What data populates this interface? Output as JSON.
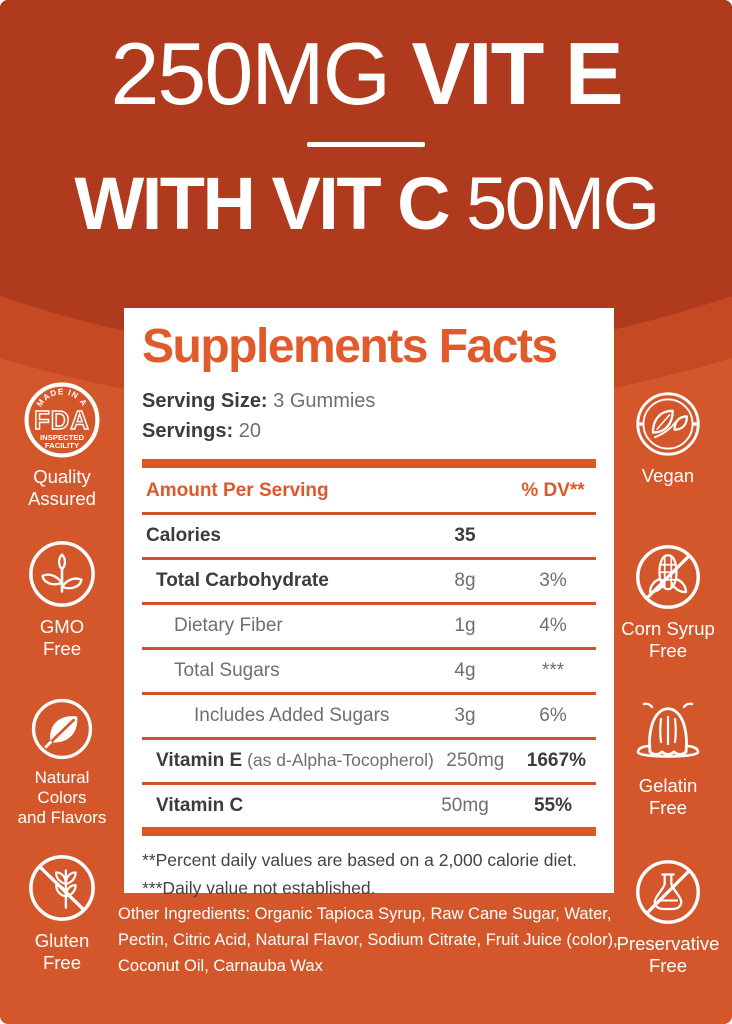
{
  "header": {
    "line1_light": "250MG ",
    "line1_bold": "VIT E",
    "line2_bold": "WITH VIT C ",
    "line2_light": "50MG"
  },
  "panel": {
    "title": "Supplements Facts",
    "serving_size_label": "Serving Size:",
    "serving_size_value": "3 Gummies",
    "servings_label": "Servings:",
    "servings_value": "20",
    "col_header_left": "Amount Per Serving",
    "col_header_right": "% DV**",
    "rows": [
      {
        "name": "Calories",
        "name_suffix": "",
        "amount": "35",
        "dv": "",
        "indent": 0,
        "name_bold": true,
        "amount_bold": true,
        "dv_bold": false
      },
      {
        "name": "Total Carbohydrate",
        "name_suffix": "",
        "amount": "8g",
        "dv": "3%",
        "indent": 1,
        "name_bold": true,
        "amount_bold": false,
        "dv_bold": false
      },
      {
        "name": "Dietary Fiber",
        "name_suffix": "",
        "amount": "1g",
        "dv": "4%",
        "indent": 2,
        "name_bold": false,
        "amount_bold": false,
        "dv_bold": false
      },
      {
        "name": "Total Sugars",
        "name_suffix": "",
        "amount": "4g",
        "dv": "***",
        "indent": 2,
        "name_bold": false,
        "amount_bold": false,
        "dv_bold": false
      },
      {
        "name": "Includes Added Sugars",
        "name_suffix": "",
        "amount": "3g",
        "dv": "6%",
        "indent": 3,
        "name_bold": false,
        "amount_bold": false,
        "dv_bold": false
      },
      {
        "name": "Vitamin E",
        "name_suffix": " (as d-Alpha-Tocopherol)",
        "amount": "250mg",
        "dv": "1667%",
        "indent": 1,
        "name_bold": true,
        "amount_bold": false,
        "dv_bold": true
      },
      {
        "name": "Vitamin C",
        "name_suffix": "",
        "amount": "50mg",
        "dv": "55%",
        "indent": 1,
        "name_bold": true,
        "amount_bold": false,
        "dv_bold": true
      }
    ],
    "footnotes": [
      "**Percent daily values are based on a 2,000 calorie diet.",
      "***Daily value not established."
    ]
  },
  "other_ingredients": "Other Ingredients: Organic Tapioca Syrup, Raw Cane Sugar, Water, Pectin, Citric Acid, Natural Flavor, Sodium Citrate, Fruit Juice (color), Coconut Oil, Carnauba Wax",
  "badges": [
    {
      "label": "Quality\nAssured",
      "icon": "fda-badge",
      "icon_text": [
        "MADE IN A",
        "FDA",
        "INSPECTED",
        "FACILITY"
      ]
    },
    {
      "label": "GMO\nFree",
      "icon": "sprout"
    },
    {
      "label": "Natural\nColors\nand Flavors",
      "icon": "leaf"
    },
    {
      "label": "Gluten\nFree",
      "icon": "wheat-crossed"
    },
    {
      "label": "Vegan",
      "icon": "vegan-leaves"
    },
    {
      "label": "Corn Syrup\nFree",
      "icon": "corn-crossed"
    },
    {
      "label": "Gelatin\nFree",
      "icon": "jelly"
    },
    {
      "label": "Preservative\nFree",
      "icon": "flask-crossed"
    }
  ],
  "colors": {
    "header_dark": "#AF3A1D",
    "curve_band": "#C54A23",
    "body_orange": "#D4572B",
    "accent_orange": "#E05A2B",
    "rule_orange": "#D2512B",
    "text_dark": "#3C3C3C",
    "text_gray": "#6F6F6F",
    "white": "#FFFFFF"
  }
}
